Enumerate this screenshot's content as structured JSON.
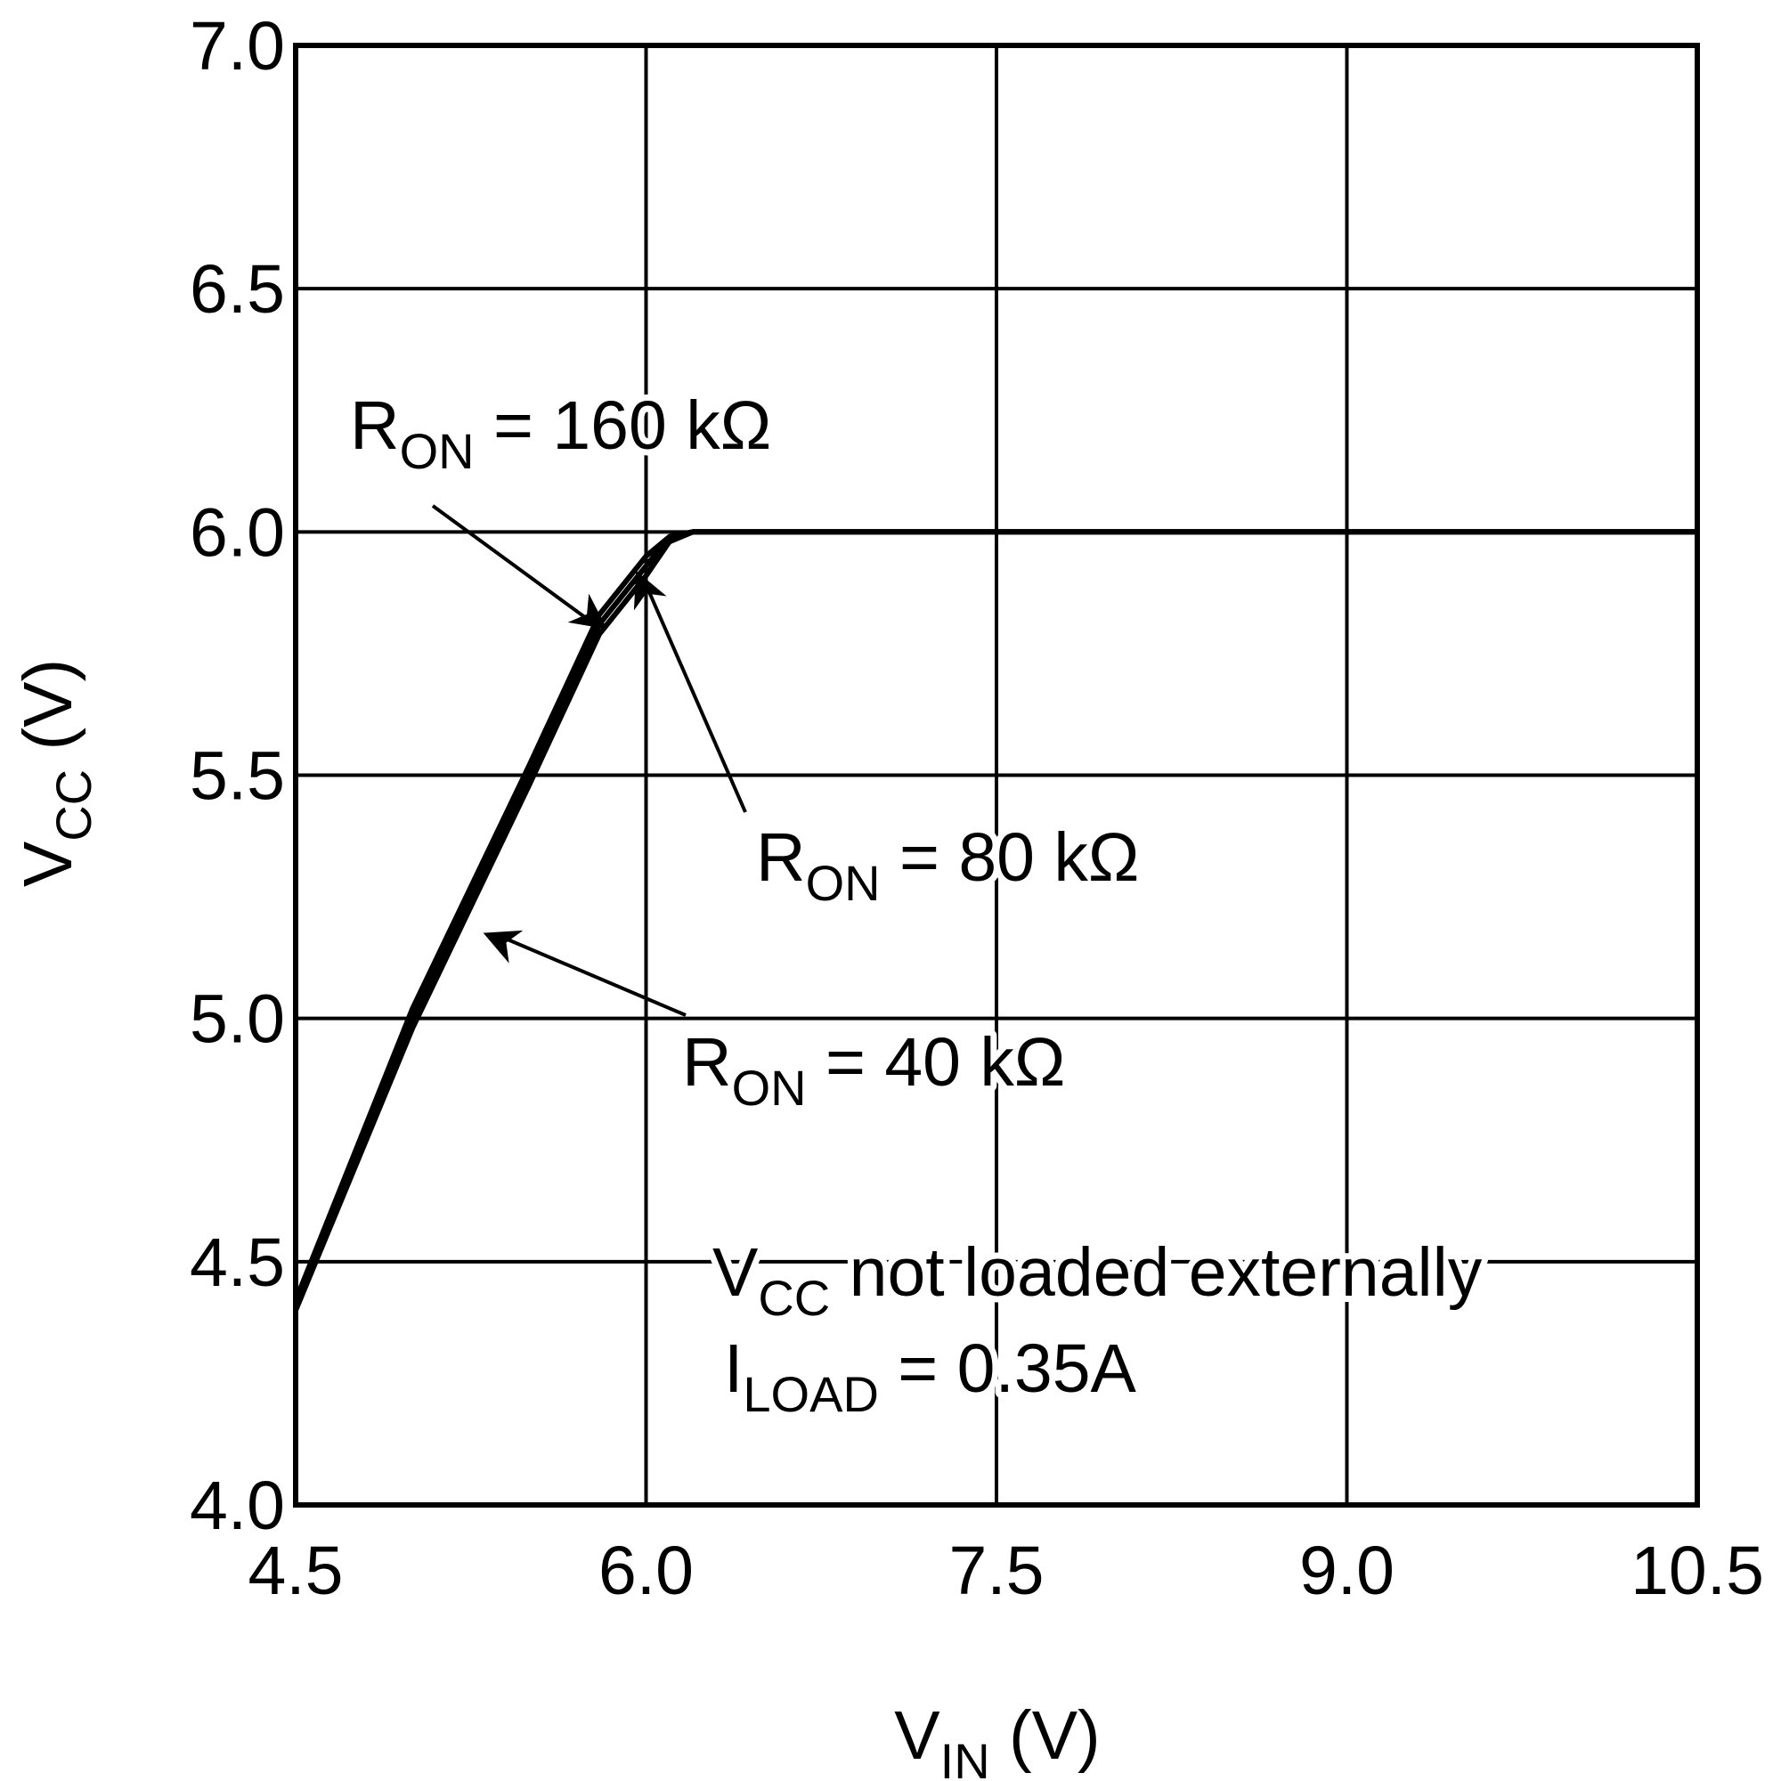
{
  "chart_data": {
    "type": "line",
    "x_label": {
      "base": "V",
      "sub": "IN",
      "text": " (V)"
    },
    "y_label": {
      "base": "V",
      "sub": "CC",
      "text": " (V)"
    },
    "x": [
      4.5,
      5.0,
      5.5,
      5.8,
      6.0,
      6.1,
      6.2,
      6.5,
      7.5,
      9.0,
      10.5
    ],
    "series": [
      {
        "name": {
          "base": "R",
          "sub": "ON",
          "text": " = 160 kΩ"
        },
        "color": "#000000",
        "values": [
          4.42,
          5.02,
          5.52,
          5.83,
          5.95,
          5.99,
          6.0,
          6.0,
          6.0,
          6.0,
          6.0
        ]
      },
      {
        "name": {
          "base": "R",
          "sub": "ON",
          "text": " = 80 kΩ"
        },
        "color": "#000000",
        "values": [
          4.41,
          5.0,
          5.5,
          5.81,
          5.93,
          5.99,
          6.0,
          6.0,
          6.0,
          6.0,
          6.0
        ]
      },
      {
        "name": {
          "base": "R",
          "sub": "ON",
          "text": " = 40 kΩ"
        },
        "color": "#000000",
        "values": [
          4.4,
          4.98,
          5.48,
          5.79,
          5.91,
          5.98,
          6.0,
          6.0,
          6.0,
          6.0,
          6.0
        ]
      }
    ],
    "notes": [
      {
        "base": "V",
        "sub": "CC",
        "text": " not loaded externally"
      },
      {
        "base": "I",
        "sub": "LOAD",
        "text": " = 0.35A"
      }
    ],
    "xlim": [
      4.5,
      10.5
    ],
    "xticks": [
      4.5,
      {
        "value": 6,
        "label": "6.0"
      },
      7.5,
      {
        "value": 9,
        "label": "9.0"
      },
      10.5
    ],
    "ylim": [
      4,
      7
    ],
    "yticks": [
      {
        "value": 4,
        "label": "4.0"
      },
      4.5,
      {
        "value": 5,
        "label": "5.0"
      },
      5.5,
      {
        "value": 6,
        "label": "6.0"
      },
      6.5,
      {
        "value": 7,
        "label": "7.0"
      }
    ],
    "grid": true
  }
}
